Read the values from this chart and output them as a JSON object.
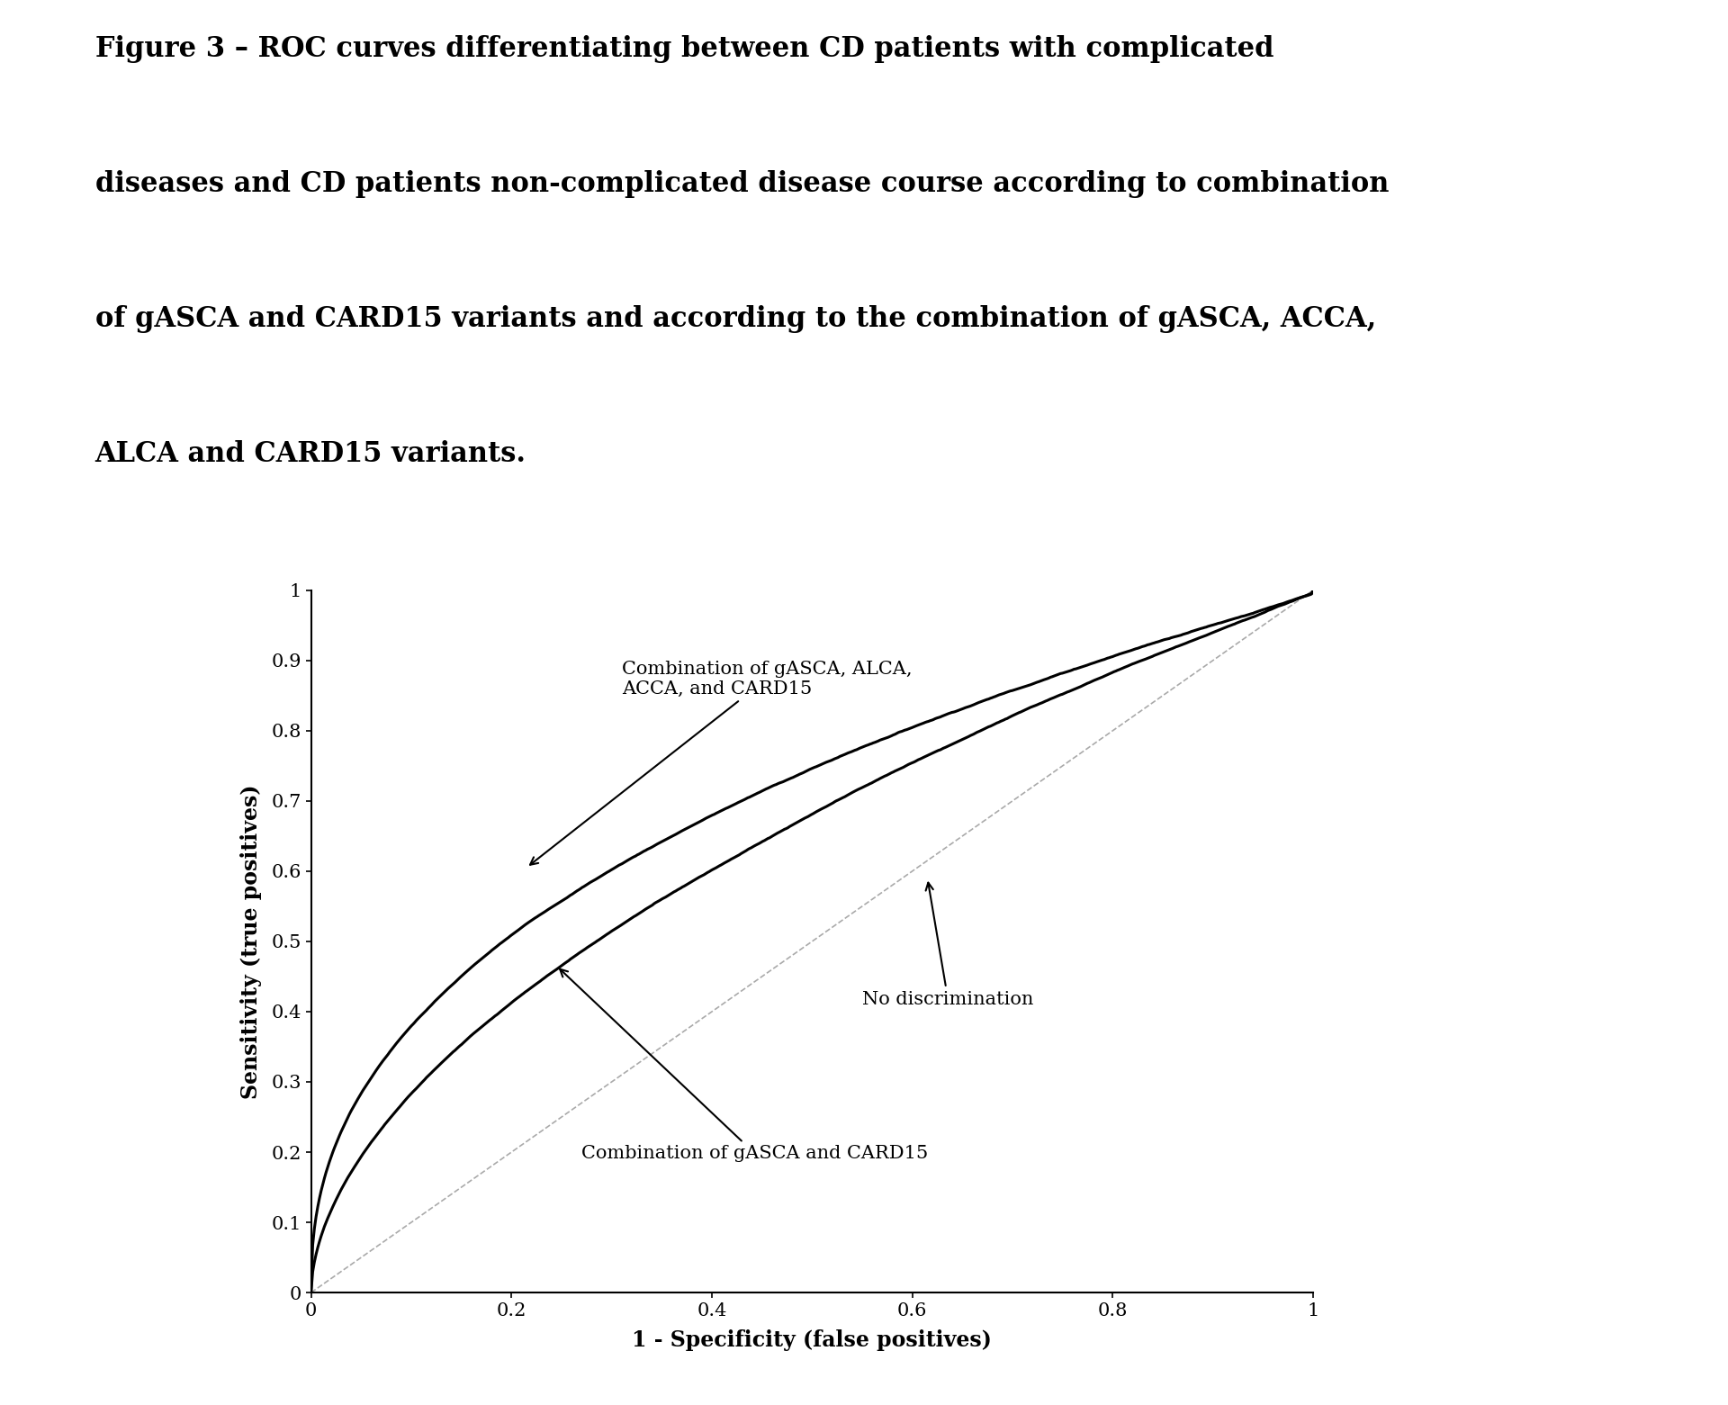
{
  "title_lines": [
    "Figure 3 – ROC curves differentiating between CD patients with complicated",
    "diseases and CD patients non-complicated disease course according to combination",
    "of gASCA and CARD15 variants and according to the combination of gASCA, ACCA,",
    "ALCA and CARD15 variants."
  ],
  "xlabel": "1 - Specificity (false positives)",
  "ylabel": "Sensitivity (true positives)",
  "xlim": [
    0,
    1
  ],
  "ylim": [
    0,
    1
  ],
  "xticks": [
    0,
    0.2,
    0.4,
    0.6,
    0.8,
    1
  ],
  "ytick_vals": [
    0,
    0.1,
    0.2,
    0.3,
    0.4,
    0.5,
    0.6,
    0.7,
    0.8,
    0.9,
    1
  ],
  "ytick_labels": [
    "0",
    "0.1",
    "0.2",
    "0.3",
    "0.4",
    "0.5",
    "0.6",
    "0.7",
    "0.8",
    "0.9",
    "1"
  ],
  "background_color": "#ffffff",
  "line_color": "#000000",
  "diag_color": "#aaaaaa",
  "title_fontsize": 22,
  "axis_label_fontsize": 17,
  "tick_fontsize": 15,
  "annotation_fontsize": 15
}
